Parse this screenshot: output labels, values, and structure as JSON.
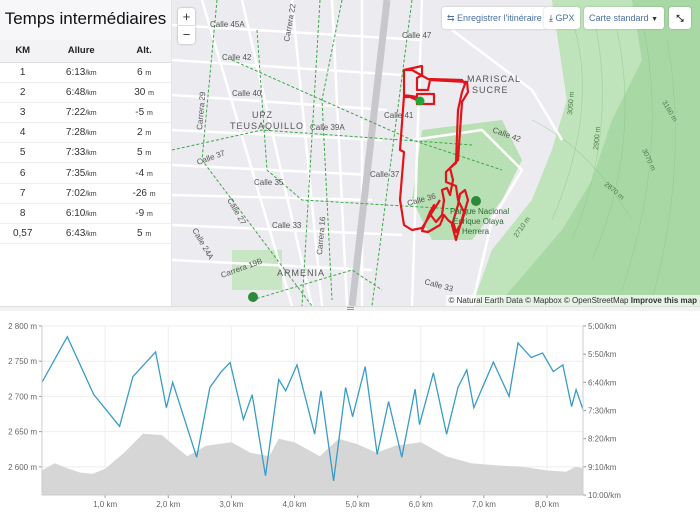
{
  "splits": {
    "title": "Temps intermédiaires",
    "headers": [
      "KM",
      "Allure",
      "Alt."
    ],
    "unit_pace": "/km",
    "unit_alt": "m",
    "rows": [
      {
        "km": "1",
        "pace": "6:13",
        "alt": "6"
      },
      {
        "km": "2",
        "pace": "6:48",
        "alt": "30"
      },
      {
        "km": "3",
        "pace": "7:22",
        "alt": "-5"
      },
      {
        "km": "4",
        "pace": "7:28",
        "alt": "2"
      },
      {
        "km": "5",
        "pace": "7:33",
        "alt": "5"
      },
      {
        "km": "6",
        "pace": "7:35",
        "alt": "-4"
      },
      {
        "km": "7",
        "pace": "7:02",
        "alt": "-26"
      },
      {
        "km": "8",
        "pace": "6:10",
        "alt": "-9"
      },
      {
        "km": "0,57",
        "pace": "6:43",
        "alt": "5"
      }
    ]
  },
  "map": {
    "save_route": "Enregistrer l'itinéraire",
    "gpx": "GPX",
    "style": "Carte standard",
    "zoom_in": "+",
    "zoom_out": "−",
    "attribution": "© Natural Earth Data © Mapbox © OpenStreetMap",
    "improve": "Improve this map",
    "labels": {
      "calle45a": "Calle 45A",
      "carrera22": "Carrera 22",
      "calle47": "Calle 47",
      "calle42": "Calle 42",
      "calle40": "Calle 40",
      "upz": "UPZ",
      "teusaquillo": "TEUSAQUILLO",
      "calle39a": "Calle 39A",
      "calle41": "Calle 41",
      "carrera29": "Carrera 29",
      "calle37a": "Calle 37",
      "calle37b": "Calle 37",
      "calle35": "Calle 35",
      "calle36": "Calle 36",
      "calle27": "Calle 27",
      "calle33": "Calle 33",
      "calle24a": "Calle 24A",
      "carrera16": "Carrera 16",
      "carrera19b": "Carrera 19B",
      "armenia": "ARMENIA",
      "mariscal": "MARISCAL",
      "sucre": "SUCRE",
      "calle42b": "Calle 42",
      "park1": "Parque Nacional",
      "park2": "Enrique Olaya",
      "park3": "Herrera",
      "calle33b": "Calle 33",
      "c3050": "3050 m",
      "c2900": "2900 m",
      "c3160": "3160 m",
      "c3070": "3070 m",
      "c2870": "2870 m",
      "c2710": "2710 m"
    },
    "colors": {
      "route": "#e0151b",
      "park": "#b9dfb4",
      "cycle": "#3aa845"
    }
  },
  "chart_data": {
    "type": "area+line",
    "left_axis": {
      "label": "",
      "ticks": [
        "2 800 m",
        "2 750 m",
        "2 700 m",
        "2 650 m",
        "2 600 m"
      ],
      "tick_values": [
        2800,
        2750,
        2700,
        2650,
        2600
      ],
      "range": [
        2560,
        2800
      ]
    },
    "right_axis": {
      "ticks": [
        "5:00/km",
        "5:50/km",
        "6:40/km",
        "7:30/km",
        "8:20/km",
        "9:10/km",
        "10:00/km"
      ],
      "range_sec": [
        300,
        600
      ]
    },
    "x_axis": {
      "ticks": [
        "1,0 km",
        "2,0 km",
        "3,0 km",
        "4,0 km",
        "5,0 km",
        "6,0 km",
        "7,0 km",
        "8,0 km"
      ],
      "tick_values": [
        1,
        2,
        3,
        4,
        5,
        6,
        7,
        8
      ],
      "range": [
        0,
        8.57
      ]
    },
    "series": [
      {
        "name": "Altitude",
        "color": "#d6d6d6",
        "unit": "m",
        "x": [
          0,
          0.2,
          0.4,
          0.6,
          0.8,
          1.0,
          1.3,
          1.6,
          1.9,
          2.1,
          2.3,
          2.6,
          3.0,
          3.3,
          3.6,
          3.75,
          4.0,
          4.4,
          4.7,
          5.0,
          5.3,
          5.6,
          6.0,
          6.4,
          6.8,
          7.2,
          7.6,
          8.0,
          8.3,
          8.45,
          8.57
        ],
        "y": [
          2595,
          2605,
          2598,
          2592,
          2590,
          2597,
          2620,
          2647,
          2645,
          2630,
          2615,
          2630,
          2635,
          2620,
          2615,
          2640,
          2635,
          2615,
          2640,
          2632,
          2620,
          2630,
          2635,
          2615,
          2605,
          2602,
          2600,
          2595,
          2593,
          2600,
          2598
        ]
      },
      {
        "name": "Allure",
        "color": "#3a9cc6",
        "unit": "s/km",
        "x": [
          0,
          0.4,
          0.82,
          1.23,
          1.44,
          1.8,
          1.97,
          2.07,
          2.45,
          2.66,
          2.84,
          2.98,
          3.19,
          3.33,
          3.54,
          3.75,
          3.86,
          4.04,
          4.32,
          4.42,
          4.62,
          4.81,
          4.92,
          5.12,
          5.31,
          5.49,
          5.7,
          5.91,
          5.98,
          6.2,
          6.41,
          6.59,
          6.73,
          6.84,
          7.15,
          7.4,
          7.54,
          7.75,
          7.93,
          8.1,
          8.25,
          8.39,
          8.46,
          8.57
        ],
        "y": [
          400,
          319,
          422,
          478,
          390,
          346,
          445,
          400,
          533,
          409,
          381,
          365,
          466,
          422,
          566,
          395,
          415,
          369,
          492,
          415,
          575,
          409,
          461,
          372,
          528,
          434,
          533,
          412,
          475,
          383,
          492,
          409,
          378,
          445,
          364,
          425,
          330,
          356,
          348,
          381,
          369,
          443,
          413,
          448
        ]
      }
    ]
  }
}
